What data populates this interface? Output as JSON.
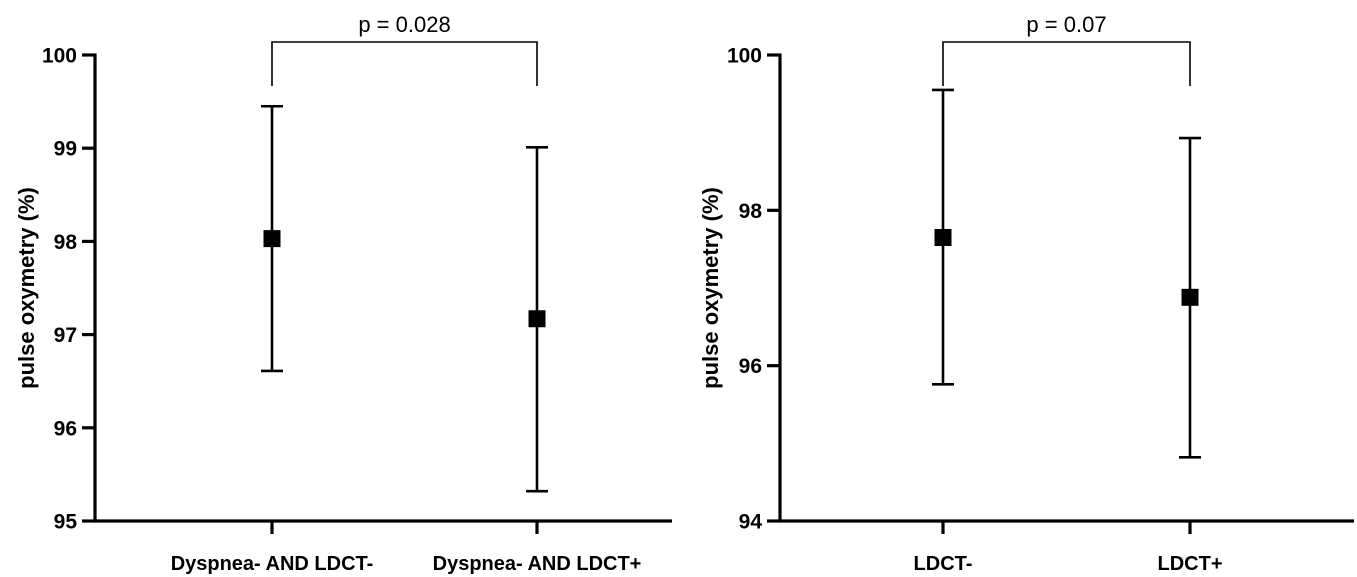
{
  "chart_data": [
    {
      "type": "scatter",
      "ylabel": "pulse oxymetry (%)",
      "xlabel": "",
      "ylim": [
        95,
        100
      ],
      "yticks": [
        95,
        96,
        97,
        98,
        99,
        100
      ],
      "categories": [
        "Dyspnea- AND LDCT-",
        "Dyspnea- AND LDCT+"
      ],
      "series": [
        {
          "mean": [
            98.03,
            97.17
          ],
          "lower": [
            96.61,
            95.32
          ],
          "upper": [
            99.45,
            99.01
          ]
        }
      ],
      "annotation": {
        "text": "p = 0.028",
        "between": [
          0,
          1
        ]
      },
      "grid": false,
      "color": "#000000"
    },
    {
      "type": "scatter",
      "ylabel": "pulse oxymetry (%)",
      "xlabel": "",
      "ylim": [
        94,
        100
      ],
      "yticks": [
        94,
        96,
        98,
        100
      ],
      "categories": [
        "LDCT-",
        "LDCT+"
      ],
      "series": [
        {
          "mean": [
            97.65,
            96.88
          ],
          "lower": [
            95.76,
            94.82
          ],
          "upper": [
            99.55,
            98.93
          ]
        }
      ],
      "annotation": {
        "text": "p = 0.07",
        "between": [
          0,
          1
        ]
      },
      "grid": false,
      "color": "#000000"
    }
  ]
}
